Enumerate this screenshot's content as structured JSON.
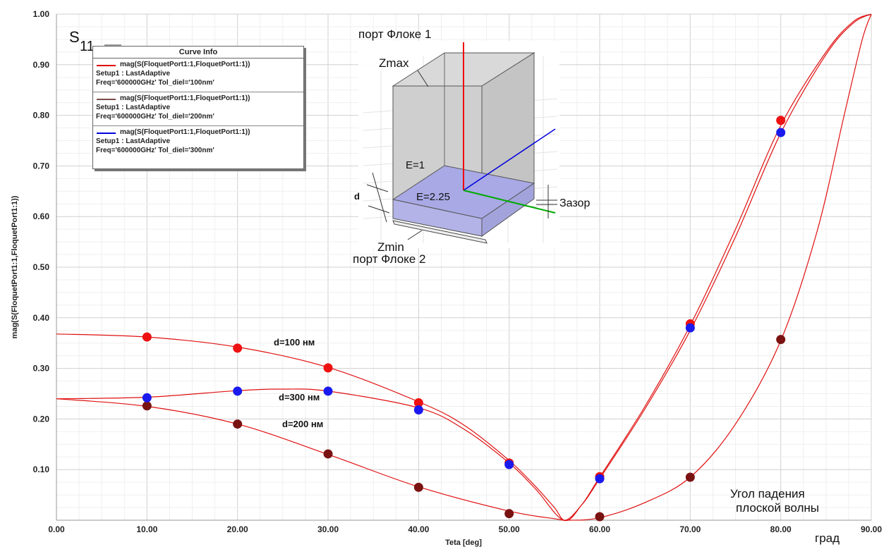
{
  "chart_data": {
    "type": "scatter",
    "title": "S11",
    "xlabel": "Teta [deg]",
    "ylabel": "mag(S(FloquetPort1:1,FloquetPort1:1))",
    "xlim": [
      0,
      90
    ],
    "ylim": [
      0,
      1
    ],
    "x_ticks": [
      "0.00",
      "10.00",
      "20.00",
      "30.00",
      "40.00",
      "50.00",
      "60.00",
      "70.00",
      "80.00",
      "90.00"
    ],
    "y_ticks": [
      "1.00",
      "0.90",
      "0.80",
      "0.70",
      "0.60",
      "0.50",
      "0.40",
      "0.30",
      "0.20",
      "0.10"
    ],
    "grid": true,
    "legend_position": "top-left",
    "legend": {
      "title": "Curve Info",
      "entries": [
        {
          "name": "mag(S(FloquetPort1:1,FloquetPort1:1))",
          "setup": "Setup1 : LastAdaptive",
          "freq": "Freq='600000GHz' Tol_diel='100nm'",
          "color": "#e00000"
        },
        {
          "name": "mag(S(FloquetPort1:1,FloquetPort1:1))",
          "setup": "Setup1 : LastAdaptive",
          "freq": "Freq='600000GHz' Tol_diel='200nm'",
          "color": "#7a4a4a"
        },
        {
          "name": "mag(S(FloquetPort1:1,FloquetPort1:1))",
          "setup": "Setup1 : LastAdaptive",
          "freq": "Freq='600000GHz' Tol_diel='300nm'",
          "color": "#0000e0"
        }
      ]
    },
    "series": [
      {
        "name": "d=100 нм",
        "marker_color": "#ee1111",
        "curve": [
          [
            0,
            0.368
          ],
          [
            10,
            0.362
          ],
          [
            20,
            0.342
          ],
          [
            30,
            0.302
          ],
          [
            40,
            0.234
          ],
          [
            45,
            0.188
          ],
          [
            50,
            0.118
          ],
          [
            53,
            0.065
          ],
          [
            55,
            0.025
          ],
          [
            56.2,
            0.0
          ],
          [
            58,
            0.03
          ],
          [
            60,
            0.085
          ],
          [
            65,
            0.225
          ],
          [
            70,
            0.385
          ],
          [
            75,
            0.575
          ],
          [
            80,
            0.78
          ],
          [
            85,
            0.925
          ],
          [
            88,
            0.985
          ],
          [
            90,
            1.0
          ]
        ],
        "markers": [
          [
            10,
            0.362
          ],
          [
            20,
            0.34
          ],
          [
            30,
            0.301
          ],
          [
            40,
            0.232
          ],
          [
            50,
            0.113
          ],
          [
            60,
            0.086
          ],
          [
            70,
            0.388
          ],
          [
            80,
            0.79
          ]
        ]
      },
      {
        "name": "d=300 нм",
        "marker_color": "#1a1aee",
        "curve": [
          [
            0,
            0.24
          ],
          [
            10,
            0.243
          ],
          [
            20,
            0.256
          ],
          [
            25,
            0.259
          ],
          [
            30,
            0.255
          ],
          [
            40,
            0.222
          ],
          [
            45,
            0.18
          ],
          [
            50,
            0.113
          ],
          [
            53,
            0.06
          ],
          [
            56,
            0.0
          ],
          [
            58,
            0.03
          ],
          [
            60,
            0.082
          ],
          [
            65,
            0.22
          ],
          [
            70,
            0.375
          ],
          [
            75,
            0.56
          ],
          [
            80,
            0.765
          ],
          [
            85,
            0.92
          ],
          [
            88,
            0.982
          ],
          [
            90,
            1.0
          ]
        ],
        "markers": [
          [
            10,
            0.242
          ],
          [
            20,
            0.255
          ],
          [
            30,
            0.255
          ],
          [
            40,
            0.218
          ],
          [
            50,
            0.11
          ],
          [
            60,
            0.082
          ],
          [
            70,
            0.38
          ],
          [
            80,
            0.766
          ]
        ]
      },
      {
        "name": "d=200 нм",
        "marker_color": "#7a1212",
        "curve": [
          [
            0,
            0.24
          ],
          [
            10,
            0.225
          ],
          [
            20,
            0.19
          ],
          [
            30,
            0.13
          ],
          [
            40,
            0.066
          ],
          [
            50,
            0.018
          ],
          [
            55,
            0.003
          ],
          [
            56.5,
            0.0
          ],
          [
            60,
            0.005
          ],
          [
            65,
            0.035
          ],
          [
            70,
            0.085
          ],
          [
            75,
            0.19
          ],
          [
            80,
            0.355
          ],
          [
            84,
            0.57
          ],
          [
            87,
            0.8
          ],
          [
            89,
            0.95
          ],
          [
            90,
            1.0
          ]
        ],
        "markers": [
          [
            10,
            0.226
          ],
          [
            20,
            0.19
          ],
          [
            30,
            0.131
          ],
          [
            40,
            0.065
          ],
          [
            50,
            0.013
          ],
          [
            60,
            0.007
          ],
          [
            70,
            0.085
          ],
          [
            80,
            0.357
          ]
        ]
      }
    ],
    "annotations": {
      "s11_main": "S",
      "s11_sub": "11",
      "label_d100": "d=100 нм",
      "label_d300": "d=300 нм",
      "label_d200": "d=200 нм",
      "angle_line1": "Угол падения",
      "angle_line2": "плоской волны",
      "unit": "град"
    },
    "inset": {
      "port1": "порт Флоке 1",
      "port2": "порт Флоке 2",
      "zmax": "Zmax",
      "zmin": "Zmin",
      "e1": "E=1",
      "e2": "E=2.25",
      "d": "d",
      "gap": "Зазор"
    }
  }
}
